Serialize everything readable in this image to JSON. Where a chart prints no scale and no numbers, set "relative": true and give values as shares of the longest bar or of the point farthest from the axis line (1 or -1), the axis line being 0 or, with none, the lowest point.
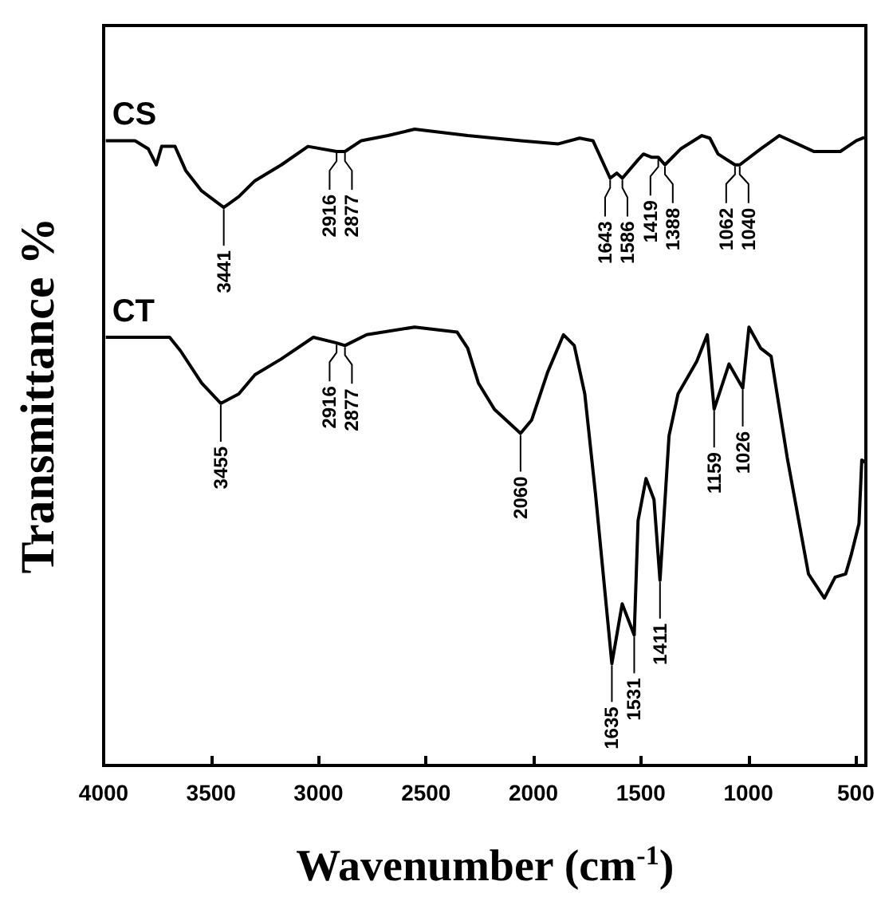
{
  "chart_data": {
    "type": "line",
    "relative": true,
    "ylabel": "Transmittance %",
    "xlabel": "Wavenumber (cm$^{-1}$)",
    "xlim": [
      4000,
      453
    ],
    "xticks": [
      4000,
      3500,
      3000,
      2500,
      2000,
      1500,
      1000,
      500
    ],
    "series": [
      {
        "name": "CS",
        "color": "#000000",
        "x": [
          3990,
          3854,
          3792,
          3755,
          3730,
          3668,
          3618,
          3544,
          3441,
          3371,
          3296,
          3173,
          3049,
          2916,
          2877,
          2801,
          2677,
          2553,
          2306,
          2058,
          1884,
          1785,
          1723,
          1643,
          1612,
          1586,
          1513,
          1488,
          1451,
          1419,
          1388,
          1315,
          1216,
          1179,
          1141,
          1062,
          1040,
          943,
          856,
          695,
          572,
          497,
          460
        ],
        "values": [
          0.982,
          0.982,
          0.969,
          0.944,
          0.973,
          0.973,
          0.935,
          0.903,
          0.877,
          0.894,
          0.919,
          0.944,
          0.973,
          0.965,
          0.965,
          0.982,
          0.99,
          1,
          0.99,
          0.982,
          0.977,
          0.986,
          0.982,
          0.923,
          0.931,
          0.923,
          0.952,
          0.961,
          0.956,
          0.956,
          0.944,
          0.969,
          0.99,
          0.986,
          0.961,
          0.944,
          0.944,
          0.969,
          0.99,
          0.965,
          0.965,
          0.982,
          0.987
        ]
      },
      {
        "name": "CT",
        "color": "#000000",
        "x": [
          3990,
          3693,
          3643,
          3544,
          3455,
          3371,
          3296,
          3173,
          3024,
          2916,
          2877,
          2776,
          2553,
          2355,
          2306,
          2256,
          2182,
          2060,
          2008,
          1934,
          1860,
          1810,
          1761,
          1711,
          1635,
          1587,
          1531,
          1513,
          1476,
          1439,
          1411,
          1369,
          1327,
          1240,
          1191,
          1159,
          1090,
          1026,
          997,
          943,
          894,
          819,
          720,
          646,
          596,
          547,
          522,
          485,
          472,
          453
        ],
        "values": [
          0.673,
          0.673,
          0.652,
          0.601,
          0.569,
          0.584,
          0.614,
          0.639,
          0.673,
          0.664,
          0.66,
          0.677,
          0.689,
          0.681,
          0.656,
          0.601,
          0.56,
          0.522,
          0.543,
          0.618,
          0.677,
          0.66,
          0.584,
          0.426,
          0.16,
          0.254,
          0.205,
          0.385,
          0.451,
          0.418,
          0.291,
          0.518,
          0.584,
          0.635,
          0.677,
          0.56,
          0.631,
          0.593,
          0.689,
          0.656,
          0.643,
          0.484,
          0.301,
          0.263,
          0.296,
          0.301,
          0.33,
          0.38,
          0.48,
          0.476
        ]
      }
    ],
    "annotations": [
      {
        "text": "3441",
        "x": 3441,
        "y": 0.877
      },
      {
        "text": "2916",
        "x": 2916,
        "y": 0.965
      },
      {
        "text": "2877",
        "x": 2877,
        "y": 0.965
      },
      {
        "text": "1643",
        "x": 1643,
        "y": 0.923
      },
      {
        "text": "1586",
        "x": 1586,
        "y": 0.923
      },
      {
        "text": "1419",
        "x": 1419,
        "y": 0.956
      },
      {
        "text": "1388",
        "x": 1388,
        "y": 0.944
      },
      {
        "text": "1062",
        "x": 1062,
        "y": 0.944
      },
      {
        "text": "1040",
        "x": 1040,
        "y": 0.944
      },
      {
        "text": "3455",
        "x": 3455,
        "y": 0.569
      },
      {
        "text": "2916",
        "x": 2916,
        "y": 0.664
      },
      {
        "text": "2877",
        "x": 2877,
        "y": 0.66
      },
      {
        "text": "2060",
        "x": 2060,
        "y": 0.522
      },
      {
        "text": "1635",
        "x": 1635,
        "y": 0.16
      },
      {
        "text": "1531",
        "x": 1531,
        "y": 0.205
      },
      {
        "text": "1411",
        "x": 1411,
        "y": 0.291
      },
      {
        "text": "1159",
        "x": 1159,
        "y": 0.56
      },
      {
        "text": "1026",
        "x": 1026,
        "y": 0.593
      }
    ]
  }
}
